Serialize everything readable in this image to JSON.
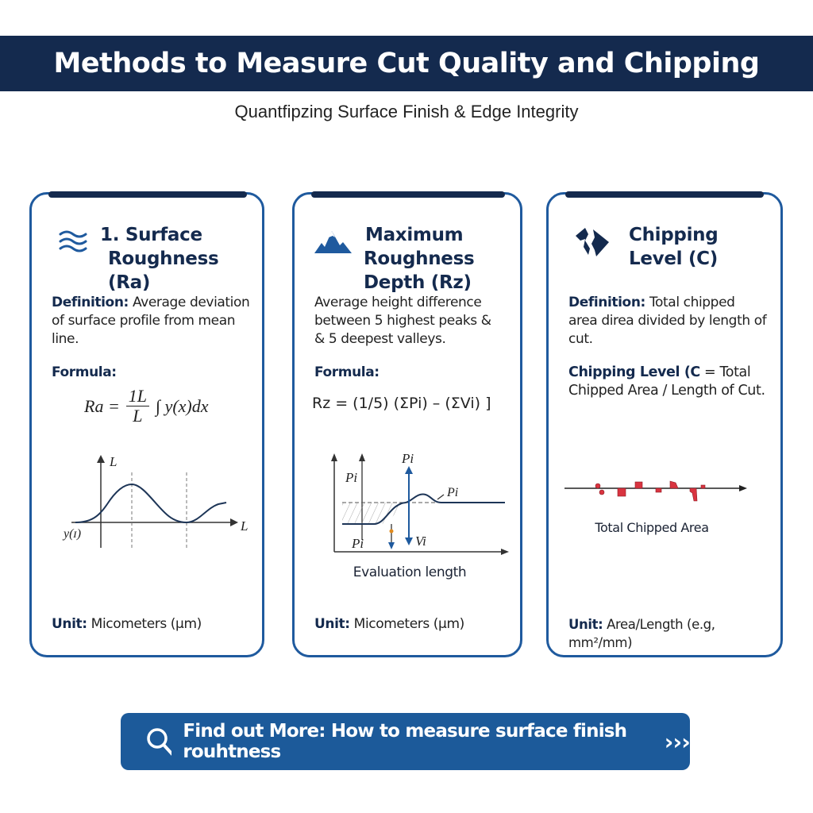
{
  "header": {
    "title": "Methods to Measure Cut Quality and Chipping",
    "subtitle": "Quantfipzing Surface Finish & Edge Integrity"
  },
  "cards": [
    {
      "icon": "waves-icon",
      "title_line1": "1. Surface",
      "title_line2": "Roughness (Ra)",
      "def_label": "Definition:",
      "def_text": " Average deviation of surface profile from mean line.",
      "formula_label": "Formula:",
      "formula": {
        "lhs": "Ra =",
        "num": "1L",
        "den": "L",
        "rest": "∫  y(x)dx"
      },
      "graph": {
        "y_axis_label": "L",
        "x_axis_label": "L",
        "curve_label": "y(ɪ)"
      },
      "unit_label": "Unit:",
      "unit_text": " Micometers (μm)"
    },
    {
      "icon": "mountain-icon",
      "title_line1": "Maximum",
      "title_line2": "Roughness Depth (Rz)",
      "def_text": "Average height difference between 5 highest peaks & & 5 deepest valleys.",
      "formula_label": "Formula:",
      "formula": "Rz = (1/5)  (ΣPi) – (ΣVi) ]",
      "graph": {
        "p1": "Pi",
        "p2": "Pi",
        "p3": "Pi",
        "p4": "Pi",
        "v": "Vi",
        "x_label": "Evaluation length"
      },
      "unit_label": "Unit:",
      "unit_text": " Micometers (μm)"
    },
    {
      "icon": "broken-edge-icon",
      "title_line1": "Chipping",
      "title_line2": "Level (C)",
      "def_label": "Definition:",
      "def_text": " Total chipped area direa divided by length of cut.",
      "formula_label": "Chipping Level (C",
      "formula_text": " = Total Chipped Area / Length of Cut.",
      "graph": {
        "label": "Total Chipped Area"
      },
      "unit_label": "Unit:",
      "unit_text": " Area/Length (e.g, mm²/mm)"
    }
  ],
  "button": {
    "label": "Find out More: How to measure surface finish rouhtness",
    "arrows": "›››"
  },
  "colors": {
    "navy": "#142a4e",
    "blue": "#1f5a9e",
    "button": "#1c5a9a",
    "chip": "#d93440"
  }
}
